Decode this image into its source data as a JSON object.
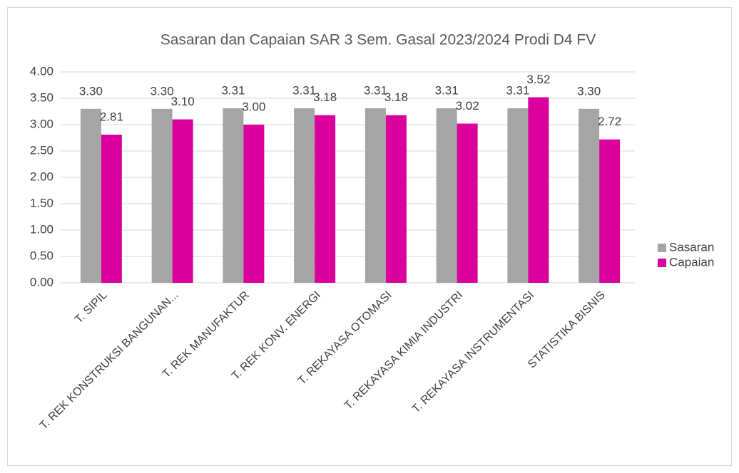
{
  "chart_data": {
    "type": "bar",
    "title": "Sasaran dan Capaian SAR 3 Sem. Gasal 2023/2024 Prodi D4 FV",
    "categories": [
      "T. SIPIL",
      "T. REK KONSTRUKSI BANGUNAN...",
      "T. REK MANUFAKTUR",
      "T. REK KONV. ENERGI",
      "T. REKAYASA OTOMASI",
      "T. REKAYASA KIMIA INDUSTRI",
      "T. REKAYASA INSTRUMENTASI",
      "STATISTIKA BISNIS"
    ],
    "series": [
      {
        "name": "Sasaran",
        "color": "#a5a5a5",
        "values": [
          3.3,
          3.3,
          3.31,
          3.31,
          3.31,
          3.31,
          3.31,
          3.3
        ],
        "value_labels": [
          "3.30",
          "3.30",
          "3.31",
          "3.31",
          "3.31",
          "3.31",
          "3.31",
          "3.30"
        ]
      },
      {
        "name": "Capaian",
        "color": "#d9009b",
        "values": [
          2.81,
          3.1,
          3.0,
          3.18,
          3.18,
          3.02,
          3.52,
          2.72
        ],
        "value_labels": [
          "2.81",
          "3.10",
          "3.00",
          "3.18",
          "3.18",
          "3.02",
          "3.52",
          "2.72"
        ]
      }
    ],
    "ylim": [
      0,
      4
    ],
    "yticks": [
      {
        "value": 0,
        "label": "0.00"
      },
      {
        "value": 0.5,
        "label": "0.50"
      },
      {
        "value": 1,
        "label": "1.00"
      },
      {
        "value": 1.5,
        "label": "1.50"
      },
      {
        "value": 2,
        "label": "2.00"
      },
      {
        "value": 2.5,
        "label": "2.50"
      },
      {
        "value": 3,
        "label": "3.00"
      },
      {
        "value": 3.5,
        "label": "3.50"
      },
      {
        "value": 4,
        "label": "4.00"
      }
    ],
    "grid": true,
    "legend": "right"
  }
}
